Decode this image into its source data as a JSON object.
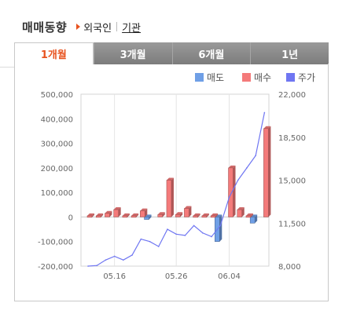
{
  "header": {
    "title": "매매동향",
    "sub_foreign": "외국인",
    "sub_institution": "기관"
  },
  "tabs": [
    {
      "label": "1개월",
      "active": true
    },
    {
      "label": "3개월",
      "active": false
    },
    {
      "label": "6개월",
      "active": false
    },
    {
      "label": "1년",
      "active": false
    }
  ],
  "colors": {
    "sell": "#6f9fe6",
    "buy": "#f47a7a",
    "price": "#6f76f2",
    "accent": "#e8531f"
  },
  "chart_data": {
    "type": "bar",
    "x_ticks": [
      "05.16",
      "05.26",
      "06.04"
    ],
    "left_axis": {
      "ticks": [
        "500,000",
        "400,000",
        "300,000",
        "200,000",
        "100,000",
        "0",
        "-100,000",
        "-200,000"
      ],
      "ylim": [
        -200000,
        500000
      ]
    },
    "right_axis": {
      "ticks": [
        "22,000",
        "18,500",
        "15,000",
        "11,500",
        "8,000"
      ],
      "ylim": [
        8000,
        22000
      ]
    },
    "legend": [
      {
        "label": "매도",
        "color": "#6f9fe6"
      },
      {
        "label": "매수",
        "color": "#f47a7a"
      },
      {
        "label": "주가",
        "color": "#6f76f2"
      }
    ],
    "series": [
      {
        "name": "매도",
        "values": [
          0,
          0,
          0,
          0,
          0,
          0,
          0,
          -10000,
          0,
          0,
          0,
          0,
          0,
          0,
          0,
          -100000,
          0,
          0,
          0,
          -25000,
          0
        ]
      },
      {
        "name": "매수",
        "values": [
          5000,
          5000,
          15000,
          30000,
          5000,
          5000,
          25000,
          0,
          10000,
          150000,
          10000,
          35000,
          5000,
          5000,
          5000,
          0,
          200000,
          30000,
          5000,
          0,
          360000
        ]
      },
      {
        "name": "주가",
        "values": [
          8000,
          8050,
          8500,
          8800,
          8500,
          8900,
          10200,
          10000,
          9600,
          11000,
          10600,
          10500,
          11300,
          10700,
          10400,
          11300,
          13600,
          15000,
          16000,
          17000,
          20500
        ]
      }
    ]
  }
}
